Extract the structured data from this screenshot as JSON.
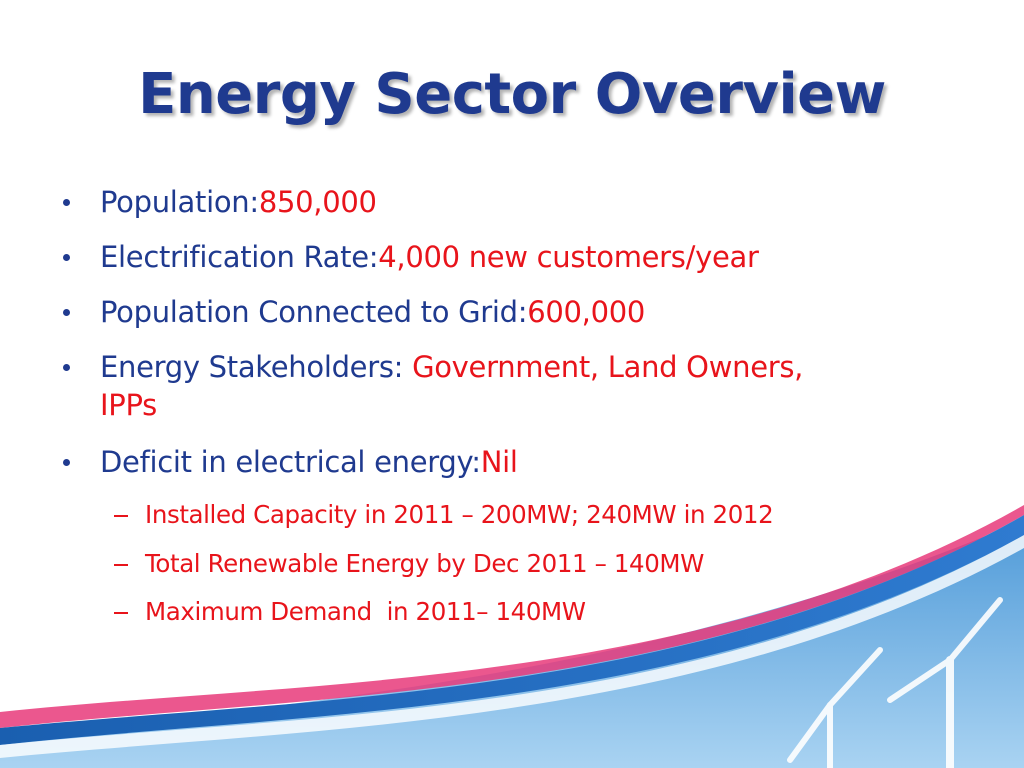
{
  "title": "Energy Sector Overview",
  "bullets": [
    {
      "label": "Population:",
      "value": "850,000"
    },
    {
      "label": "Electrification Rate:",
      "value": "4,000 new customers/year"
    },
    {
      "label": "Population Connected to Grid:",
      "value": "600,000"
    },
    {
      "label": "Energy Stakeholders:",
      "value": "Government, Land Owners, IPPs"
    },
    {
      "label": "Deficit in electrical energy:",
      "value": "Nil"
    }
  ],
  "sub_bullets": [
    "Installed Capacity in 2011 – 200MW; 240MW in 2012",
    "Total Renewable Energy by Dec 2011 – 140MW",
    "Maximum Demand  in 2011– 140MW"
  ]
}
